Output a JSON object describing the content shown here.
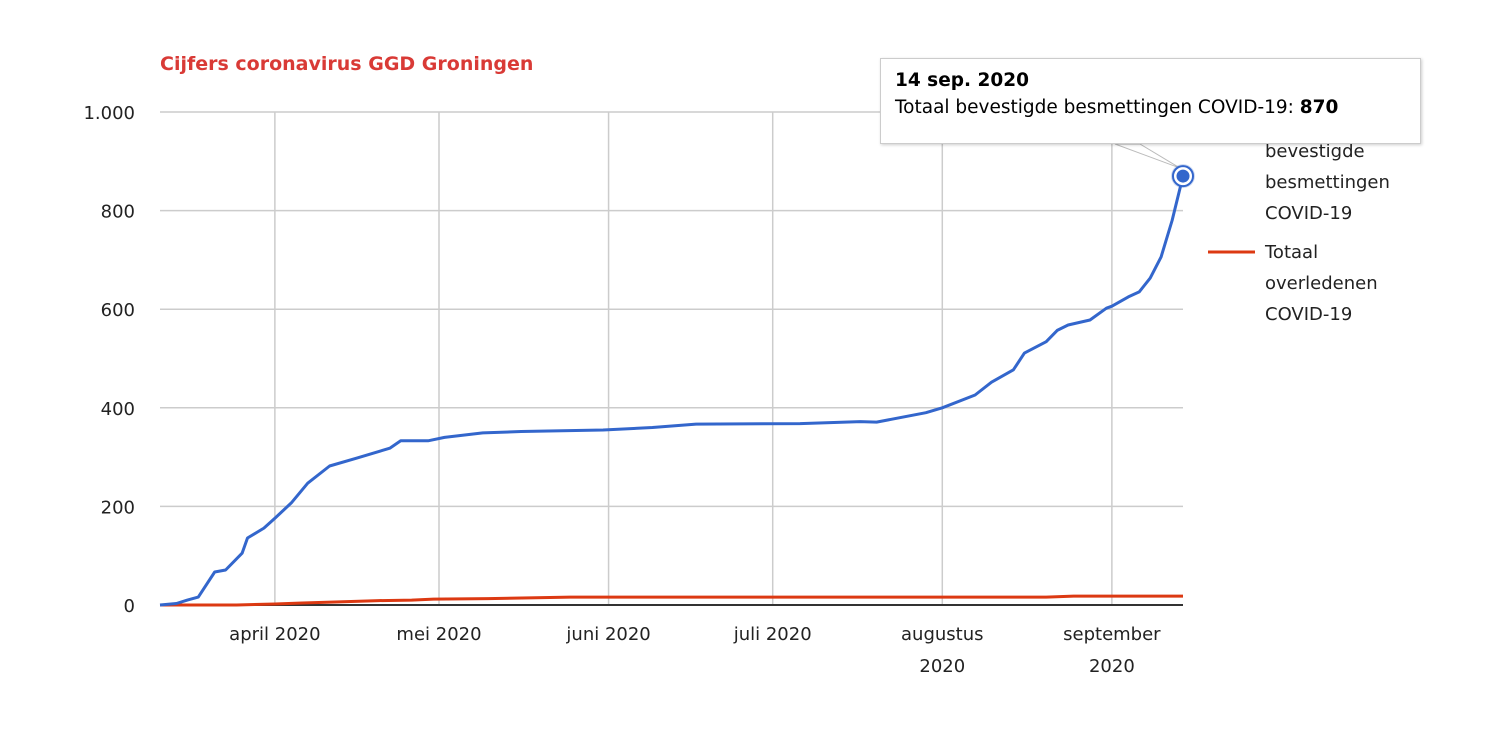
{
  "chart_data": {
    "type": "line",
    "title": "Cijfers coronavirus GGD Groningen",
    "title_color": "#d93a36",
    "xlabel": "",
    "ylabel": "",
    "xlim": [
      "2020-03-11",
      "2020-09-14"
    ],
    "ylim": [
      0,
      1000
    ],
    "y_ticks": [
      {
        "value": 0,
        "label": "0"
      },
      {
        "value": 200,
        "label": "200"
      },
      {
        "value": 400,
        "label": "400"
      },
      {
        "value": 600,
        "label": "600"
      },
      {
        "value": 800,
        "label": "800"
      },
      {
        "value": 1000,
        "label": "1.000"
      }
    ],
    "x_ticks": [
      {
        "date": "2020-04-01",
        "label": [
          "april 2020"
        ]
      },
      {
        "date": "2020-05-01",
        "label": [
          "mei 2020"
        ]
      },
      {
        "date": "2020-06-01",
        "label": [
          "juni 2020"
        ]
      },
      {
        "date": "2020-07-01",
        "label": [
          "juli 2020"
        ]
      },
      {
        "date": "2020-08-01",
        "label": [
          "augustus",
          "2020"
        ]
      },
      {
        "date": "2020-09-01",
        "label": [
          "september",
          "2020"
        ]
      }
    ],
    "grid": true,
    "legend_position": "right",
    "series": [
      {
        "name": "Totaal bevestigde besmettingen COVID-19",
        "color": "#3366cc",
        "points": [
          [
            "2020-03-11",
            0
          ],
          [
            "2020-03-14",
            3
          ],
          [
            "2020-03-16",
            10
          ],
          [
            "2020-03-18",
            16
          ],
          [
            "2020-03-21",
            67
          ],
          [
            "2020-03-23",
            71
          ],
          [
            "2020-03-26",
            105
          ],
          [
            "2020-03-27",
            136
          ],
          [
            "2020-03-30",
            156
          ],
          [
            "2020-04-01",
            176
          ],
          [
            "2020-04-04",
            207
          ],
          [
            "2020-04-07",
            247
          ],
          [
            "2020-04-11",
            282
          ],
          [
            "2020-04-16",
            298
          ],
          [
            "2020-04-22",
            318
          ],
          [
            "2020-04-24",
            333
          ],
          [
            "2020-04-29",
            333
          ],
          [
            "2020-05-02",
            340
          ],
          [
            "2020-05-09",
            349
          ],
          [
            "2020-05-16",
            352
          ],
          [
            "2020-05-31",
            355
          ],
          [
            "2020-06-09",
            360
          ],
          [
            "2020-06-17",
            367
          ],
          [
            "2020-07-06",
            368
          ],
          [
            "2020-07-17",
            372
          ],
          [
            "2020-07-20",
            371
          ],
          [
            "2020-07-29",
            390
          ],
          [
            "2020-08-01",
            400
          ],
          [
            "2020-08-07",
            426
          ],
          [
            "2020-08-10",
            452
          ],
          [
            "2020-08-14",
            477
          ],
          [
            "2020-08-16",
            511
          ],
          [
            "2020-08-20",
            534
          ],
          [
            "2020-08-22",
            557
          ],
          [
            "2020-08-24",
            568
          ],
          [
            "2020-08-28",
            578
          ],
          [
            "2020-08-31",
            602
          ],
          [
            "2020-09-01",
            606
          ],
          [
            "2020-09-04",
            625
          ],
          [
            "2020-09-06",
            635
          ],
          [
            "2020-09-08",
            663
          ],
          [
            "2020-09-10",
            706
          ],
          [
            "2020-09-12",
            780
          ],
          [
            "2020-09-14",
            870
          ]
        ]
      },
      {
        "name": "Totaal overledenen COVID-19",
        "color": "#dc3912",
        "points": [
          [
            "2020-03-11",
            0
          ],
          [
            "2020-03-25",
            0
          ],
          [
            "2020-04-01",
            2
          ],
          [
            "2020-04-06",
            4
          ],
          [
            "2020-04-12",
            6
          ],
          [
            "2020-04-20",
            9
          ],
          [
            "2020-04-26",
            10
          ],
          [
            "2020-04-30",
            12
          ],
          [
            "2020-05-10",
            13
          ],
          [
            "2020-05-20",
            15
          ],
          [
            "2020-05-25",
            16
          ],
          [
            "2020-08-20",
            16
          ],
          [
            "2020-08-25",
            18
          ],
          [
            "2020-09-14",
            18
          ]
        ]
      }
    ],
    "tooltip": {
      "date": "14 sep. 2020",
      "series_label": "Totaal bevestigde besmettingen COVID-19:",
      "value": "870"
    }
  }
}
